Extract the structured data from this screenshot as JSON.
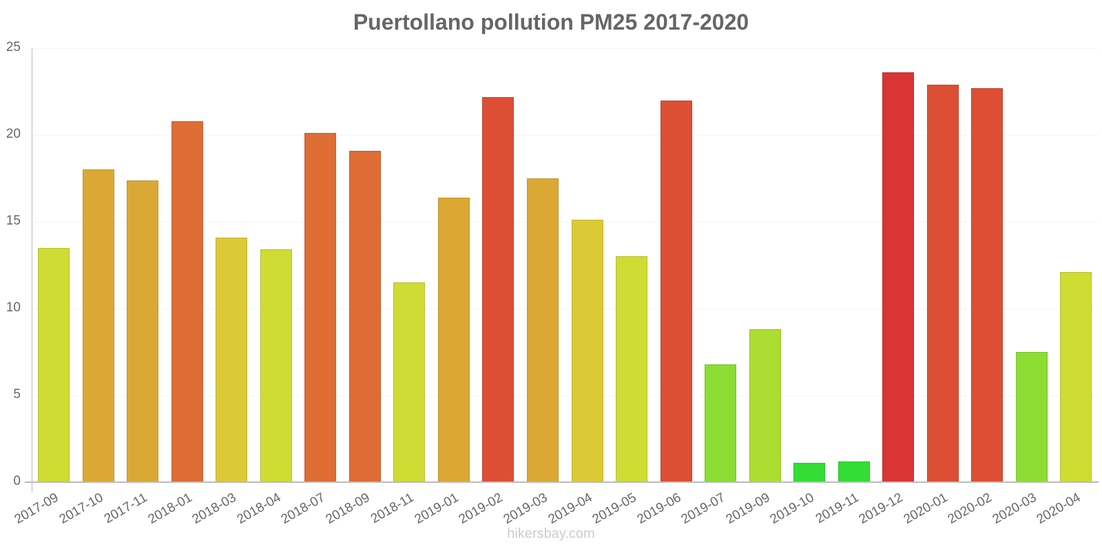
{
  "chart_data": {
    "type": "bar",
    "title": "Puertollano pollution PM25 2017-2020",
    "xlabel": "",
    "ylabel": "",
    "ylim": [
      0,
      25
    ],
    "yticks": [
      0,
      5,
      10,
      15,
      20,
      25
    ],
    "grid": true,
    "legend": null,
    "categories": [
      "2017-09",
      "2017-10",
      "2017-11",
      "2018-01",
      "2018-03",
      "2018-04",
      "2018-07",
      "2018-09",
      "2018-11",
      "2019-01",
      "2019-02",
      "2019-03",
      "2019-04",
      "2019-05",
      "2019-06",
      "2019-07",
      "2019-09",
      "2019-10",
      "2019-11",
      "2019-12",
      "2020-01",
      "2020-02",
      "2020-03",
      "2020-04"
    ],
    "values": [
      13.5,
      18.0,
      17.4,
      20.8,
      14.1,
      13.4,
      20.1,
      19.1,
      11.5,
      16.4,
      22.2,
      17.5,
      15.1,
      13.0,
      22.0,
      6.8,
      8.8,
      1.1,
      1.2,
      23.6,
      22.9,
      22.7,
      7.5,
      12.1
    ],
    "colors": [
      "#cedc34",
      "#dba835",
      "#dba835",
      "#dd6d35",
      "#dbca35",
      "#cedc34",
      "#dd6d35",
      "#dd6d35",
      "#cedc34",
      "#dba835",
      "#dc4f35",
      "#dba835",
      "#dbca35",
      "#cedc34",
      "#dc4f35",
      "#8cdc34",
      "#addd32",
      "#33dd35",
      "#33dd35",
      "#d93535",
      "#dc4f35",
      "#dc4f35",
      "#8cdc34",
      "#cedc34"
    ]
  },
  "header": {
    "title": "Puertollano pollution PM25 2017-2020"
  },
  "yaxis": {
    "ticks": [
      "0",
      "5",
      "10",
      "15",
      "20",
      "25"
    ]
  },
  "footer": {
    "watermark": "hikersbay.com"
  }
}
